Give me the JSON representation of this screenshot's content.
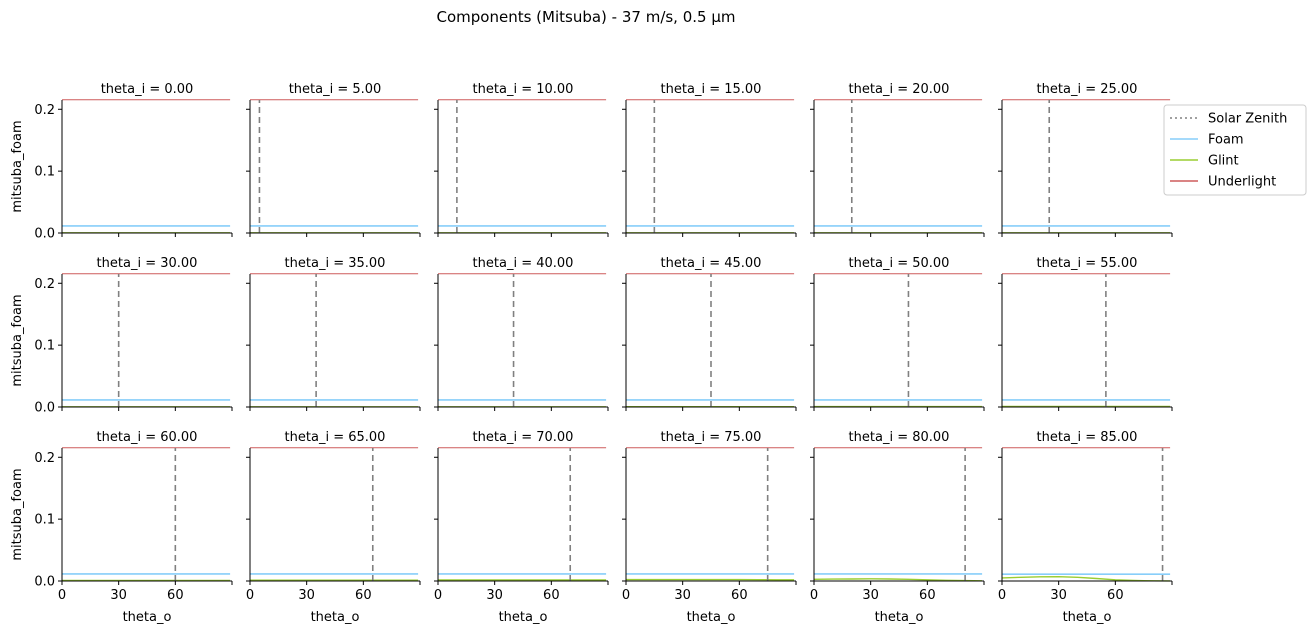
{
  "title": "Components (Mitsuba) - 37 m/s, 0.5 µm",
  "legend": {
    "placement": "right-of-top-row",
    "entries": [
      {
        "label": "Solar Zenith",
        "color": "#808080",
        "style": "dotted"
      },
      {
        "label": "Foam",
        "color": "#87cefa",
        "style": "solid"
      },
      {
        "label": "Glint",
        "color": "#9acd32",
        "style": "solid"
      },
      {
        "label": "Underlight",
        "color": "#cd5c5c",
        "style": "solid"
      }
    ]
  },
  "chart_data": {
    "type": "line",
    "layout": "facet-grid",
    "rows": 3,
    "cols": 6,
    "xlabel": "theta_o",
    "ylabel": "mitsuba_foam",
    "xlim": [
      0,
      89
    ],
    "ylim": [
      0,
      0.215
    ],
    "xticks": [
      "0",
      "30",
      "60"
    ],
    "xtick_values": [
      0,
      30,
      60,
      90
    ],
    "yticks": [
      "0.0",
      "0.1",
      "0.2"
    ],
    "ytick_values": [
      0,
      0.1,
      0.2
    ],
    "grid": false,
    "x": [
      0,
      10,
      20,
      30,
      40,
      50,
      60,
      70,
      80,
      89
    ],
    "panels": [
      {
        "title": "theta_i = 0.00",
        "theta_i": 0,
        "foam": [
          0.0115,
          0.0115,
          0.0115,
          0.0115,
          0.0115,
          0.0115,
          0.0115,
          0.0115,
          0.0115,
          0.0115
        ],
        "glint": [
          0.0003,
          0.0003,
          0.0003,
          0.0003,
          0.0003,
          0.0003,
          0.0003,
          0.0003,
          0.0003,
          0.0003
        ],
        "underlight": [
          0.2155,
          0.2155,
          0.2155,
          0.2155,
          0.2155,
          0.2155,
          0.2155,
          0.2155,
          0.2155,
          0.2155
        ]
      },
      {
        "title": "theta_i = 5.00",
        "theta_i": 5,
        "foam": [
          0.0115,
          0.0115,
          0.0115,
          0.0115,
          0.0115,
          0.0115,
          0.0115,
          0.0115,
          0.0115,
          0.0115
        ],
        "glint": [
          0.0003,
          0.0003,
          0.0003,
          0.0003,
          0.0003,
          0.0003,
          0.0003,
          0.0003,
          0.0003,
          0.0003
        ],
        "underlight": [
          0.2155,
          0.2155,
          0.2155,
          0.2155,
          0.2155,
          0.2155,
          0.2155,
          0.2155,
          0.2155,
          0.2155
        ]
      },
      {
        "title": "theta_i = 10.00",
        "theta_i": 10,
        "foam": [
          0.0115,
          0.0115,
          0.0115,
          0.0115,
          0.0115,
          0.0115,
          0.0115,
          0.0115,
          0.0115,
          0.0115
        ],
        "glint": [
          0.0003,
          0.0003,
          0.0003,
          0.0003,
          0.0003,
          0.0003,
          0.0003,
          0.0003,
          0.0003,
          0.0003
        ],
        "underlight": [
          0.2155,
          0.2155,
          0.2155,
          0.2155,
          0.2155,
          0.2155,
          0.2155,
          0.2155,
          0.2155,
          0.2155
        ]
      },
      {
        "title": "theta_i = 15.00",
        "theta_i": 15,
        "foam": [
          0.0115,
          0.0115,
          0.0115,
          0.0115,
          0.0115,
          0.0115,
          0.0115,
          0.0115,
          0.0115,
          0.0115
        ],
        "glint": [
          0.0003,
          0.0003,
          0.0003,
          0.0003,
          0.0003,
          0.0003,
          0.0003,
          0.0003,
          0.0003,
          0.0003
        ],
        "underlight": [
          0.2155,
          0.2155,
          0.2155,
          0.2155,
          0.2155,
          0.2155,
          0.2155,
          0.2155,
          0.2155,
          0.2155
        ]
      },
      {
        "title": "theta_i = 20.00",
        "theta_i": 20,
        "foam": [
          0.0115,
          0.0115,
          0.0115,
          0.0115,
          0.0115,
          0.0115,
          0.0115,
          0.0115,
          0.0115,
          0.0115
        ],
        "glint": [
          0.0003,
          0.0003,
          0.0003,
          0.0003,
          0.0003,
          0.0003,
          0.0003,
          0.0003,
          0.0003,
          0.0003
        ],
        "underlight": [
          0.2155,
          0.2155,
          0.2155,
          0.2155,
          0.2155,
          0.2155,
          0.2155,
          0.2155,
          0.2155,
          0.2155
        ]
      },
      {
        "title": "theta_i = 25.00",
        "theta_i": 25,
        "foam": [
          0.0115,
          0.0115,
          0.0115,
          0.0115,
          0.0115,
          0.0115,
          0.0115,
          0.0115,
          0.0115,
          0.0115
        ],
        "glint": [
          0.0003,
          0.0003,
          0.0003,
          0.0003,
          0.0003,
          0.0003,
          0.0003,
          0.0003,
          0.0003,
          0.0003
        ],
        "underlight": [
          0.2155,
          0.2155,
          0.2155,
          0.2155,
          0.2155,
          0.2155,
          0.2155,
          0.2155,
          0.2155,
          0.2155
        ]
      },
      {
        "title": "theta_i = 30.00",
        "theta_i": 30,
        "foam": [
          0.0115,
          0.0115,
          0.0115,
          0.0115,
          0.0115,
          0.0115,
          0.0115,
          0.0115,
          0.0115,
          0.0115
        ],
        "glint": [
          0.0003,
          0.0003,
          0.0003,
          0.0003,
          0.0003,
          0.0003,
          0.0003,
          0.0003,
          0.0003,
          0.0003
        ],
        "underlight": [
          0.2155,
          0.2155,
          0.2155,
          0.2155,
          0.2155,
          0.2155,
          0.2155,
          0.2155,
          0.2155,
          0.2155
        ]
      },
      {
        "title": "theta_i = 35.00",
        "theta_i": 35,
        "foam": [
          0.0115,
          0.0115,
          0.0115,
          0.0115,
          0.0115,
          0.0115,
          0.0115,
          0.0115,
          0.0115,
          0.0115
        ],
        "glint": [
          0.0003,
          0.0003,
          0.0003,
          0.0003,
          0.0003,
          0.0003,
          0.0003,
          0.0003,
          0.0003,
          0.0003
        ],
        "underlight": [
          0.2155,
          0.2155,
          0.2155,
          0.2155,
          0.2155,
          0.2155,
          0.2155,
          0.2155,
          0.2155,
          0.2155
        ]
      },
      {
        "title": "theta_i = 40.00",
        "theta_i": 40,
        "foam": [
          0.0115,
          0.0115,
          0.0115,
          0.0115,
          0.0115,
          0.0115,
          0.0115,
          0.0115,
          0.0115,
          0.0115
        ],
        "glint": [
          0.0004,
          0.0004,
          0.0004,
          0.0004,
          0.0004,
          0.0004,
          0.0004,
          0.0004,
          0.0004,
          0.0004
        ],
        "underlight": [
          0.2155,
          0.2155,
          0.2155,
          0.2155,
          0.2155,
          0.2155,
          0.2155,
          0.2155,
          0.2155,
          0.2155
        ]
      },
      {
        "title": "theta_i = 45.00",
        "theta_i": 45,
        "foam": [
          0.0115,
          0.0115,
          0.0115,
          0.0115,
          0.0115,
          0.0115,
          0.0115,
          0.0115,
          0.0115,
          0.0115
        ],
        "glint": [
          0.0005,
          0.0005,
          0.0005,
          0.0005,
          0.0005,
          0.0005,
          0.0005,
          0.0005,
          0.0005,
          0.0005
        ],
        "underlight": [
          0.2155,
          0.2155,
          0.2155,
          0.2155,
          0.2155,
          0.2155,
          0.2155,
          0.2155,
          0.2155,
          0.2155
        ]
      },
      {
        "title": "theta_i = 50.00",
        "theta_i": 50,
        "foam": [
          0.0115,
          0.0115,
          0.0115,
          0.0115,
          0.0115,
          0.0115,
          0.0115,
          0.0115,
          0.0115,
          0.0115
        ],
        "glint": [
          0.0006,
          0.0006,
          0.0006,
          0.0006,
          0.0006,
          0.0006,
          0.0006,
          0.0006,
          0.0006,
          0.0006
        ],
        "underlight": [
          0.2155,
          0.2155,
          0.2155,
          0.2155,
          0.2155,
          0.2155,
          0.2155,
          0.2155,
          0.2155,
          0.2155
        ]
      },
      {
        "title": "theta_i = 55.00",
        "theta_i": 55,
        "foam": [
          0.0115,
          0.0115,
          0.0115,
          0.0115,
          0.0115,
          0.0115,
          0.0115,
          0.0115,
          0.0115,
          0.0115
        ],
        "glint": [
          0.0008,
          0.0008,
          0.0008,
          0.0008,
          0.0008,
          0.0008,
          0.0008,
          0.0008,
          0.0008,
          0.0008
        ],
        "underlight": [
          0.2155,
          0.2155,
          0.2155,
          0.2155,
          0.2155,
          0.2155,
          0.2155,
          0.2155,
          0.2155,
          0.2155
        ]
      },
      {
        "title": "theta_i = 60.00",
        "theta_i": 60,
        "foam": [
          0.0115,
          0.0115,
          0.0115,
          0.0115,
          0.0115,
          0.0115,
          0.0115,
          0.0115,
          0.0115,
          0.0115
        ],
        "glint": [
          0.001,
          0.001,
          0.001,
          0.001,
          0.001,
          0.001,
          0.001,
          0.001,
          0.001,
          0.001
        ],
        "underlight": [
          0.2155,
          0.2155,
          0.2155,
          0.2155,
          0.2155,
          0.2155,
          0.2155,
          0.2155,
          0.2155,
          0.2155
        ]
      },
      {
        "title": "theta_i = 65.00",
        "theta_i": 65,
        "foam": [
          0.0115,
          0.0115,
          0.0115,
          0.0115,
          0.0115,
          0.0115,
          0.0115,
          0.0115,
          0.0115,
          0.0115
        ],
        "glint": [
          0.0013,
          0.0013,
          0.0013,
          0.0013,
          0.0013,
          0.0013,
          0.0013,
          0.0013,
          0.0013,
          0.0013
        ],
        "underlight": [
          0.2155,
          0.2155,
          0.2155,
          0.2155,
          0.2155,
          0.2155,
          0.2155,
          0.2155,
          0.2155,
          0.2155
        ]
      },
      {
        "title": "theta_i = 70.00",
        "theta_i": 70,
        "foam": [
          0.0115,
          0.0115,
          0.0115,
          0.0115,
          0.0115,
          0.0115,
          0.0115,
          0.0115,
          0.0115,
          0.0115
        ],
        "glint": [
          0.0016,
          0.0016,
          0.0016,
          0.0016,
          0.0016,
          0.0016,
          0.0016,
          0.0016,
          0.0016,
          0.0016
        ],
        "underlight": [
          0.2155,
          0.2155,
          0.2155,
          0.2155,
          0.2155,
          0.2155,
          0.2155,
          0.2155,
          0.2155,
          0.2155
        ]
      },
      {
        "title": "theta_i = 75.00",
        "theta_i": 75,
        "foam": [
          0.0115,
          0.0115,
          0.0115,
          0.0115,
          0.0115,
          0.0115,
          0.0115,
          0.0115,
          0.0115,
          0.0115
        ],
        "glint": [
          0.0022,
          0.0022,
          0.0022,
          0.0022,
          0.0022,
          0.0022,
          0.0022,
          0.0021,
          0.002,
          0.0019
        ],
        "underlight": [
          0.2155,
          0.2155,
          0.2155,
          0.2155,
          0.2155,
          0.2155,
          0.2155,
          0.2155,
          0.2155,
          0.2155
        ]
      },
      {
        "title": "theta_i = 80.00",
        "theta_i": 80,
        "foam": [
          0.0115,
          0.0115,
          0.0115,
          0.0115,
          0.0115,
          0.0115,
          0.0115,
          0.0115,
          0.0115,
          0.0115
        ],
        "glint": [
          0.0028,
          0.003,
          0.0033,
          0.0035,
          0.0033,
          0.0028,
          0.002,
          0.0012,
          0.0006,
          0.0003
        ],
        "underlight": [
          0.2155,
          0.2155,
          0.2155,
          0.2155,
          0.2155,
          0.2155,
          0.2155,
          0.2155,
          0.2155,
          0.2155
        ]
      },
      {
        "title": "theta_i = 85.00",
        "theta_i": 85,
        "foam": [
          0.011,
          0.011,
          0.011,
          0.011,
          0.011,
          0.011,
          0.011,
          0.011,
          0.011,
          0.011
        ],
        "glint": [
          0.005,
          0.006,
          0.0068,
          0.007,
          0.006,
          0.004,
          0.002,
          0.0008,
          0.0003,
          0.0001
        ],
        "underlight": [
          0.2155,
          0.2155,
          0.2155,
          0.2155,
          0.2155,
          0.2155,
          0.2155,
          0.2155,
          0.2155,
          0.2155
        ]
      }
    ]
  }
}
